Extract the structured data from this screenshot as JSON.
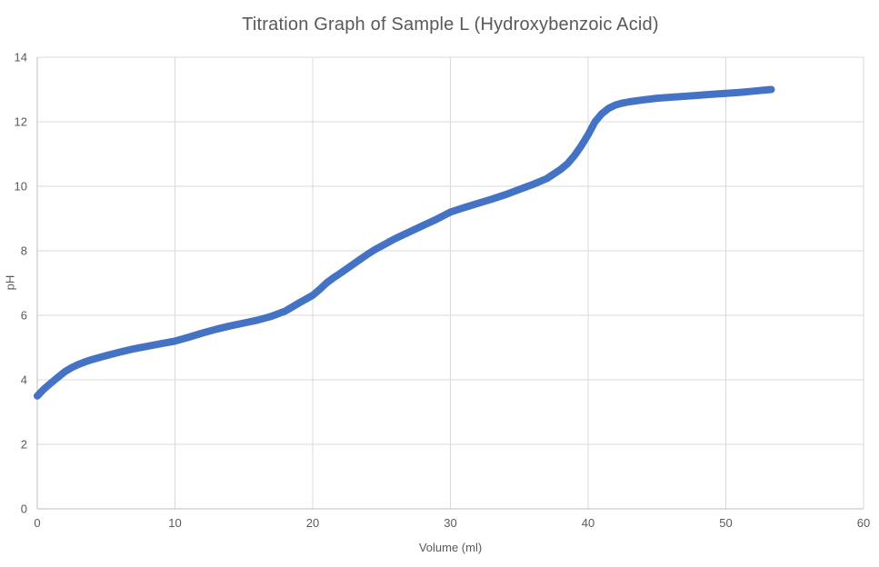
{
  "chart_data": {
    "type": "line",
    "title": "Titration Graph of Sample L (Hydroxybenzoic Acid)",
    "xlabel": "Volume (ml)",
    "ylabel": "pH",
    "xlim": [
      0,
      60
    ],
    "ylim": [
      0,
      14
    ],
    "x_ticks": [
      0,
      10,
      20,
      30,
      40,
      50,
      60
    ],
    "y_ticks": [
      0,
      2,
      4,
      6,
      8,
      10,
      12,
      14
    ],
    "grid": true,
    "legend_position": "none",
    "colors": {
      "series": "#4472C4",
      "gridline": "#D9D9D9",
      "axis_line": "#BFBFBF",
      "text": "#595959",
      "background": "#FFFFFF"
    },
    "series": [
      {
        "name": "pH",
        "color": "#4472C4",
        "line_width": 8,
        "points": [
          [
            0,
            3.5
          ],
          [
            0.5,
            3.72
          ],
          [
            1,
            3.9
          ],
          [
            1.5,
            4.08
          ],
          [
            2,
            4.25
          ],
          [
            2.5,
            4.38
          ],
          [
            3,
            4.48
          ],
          [
            3.5,
            4.56
          ],
          [
            4,
            4.63
          ],
          [
            4.5,
            4.69
          ],
          [
            5,
            4.75
          ],
          [
            6,
            4.86
          ],
          [
            7,
            4.96
          ],
          [
            8,
            5.04
          ],
          [
            9,
            5.12
          ],
          [
            10,
            5.2
          ],
          [
            11,
            5.32
          ],
          [
            12,
            5.45
          ],
          [
            13,
            5.57
          ],
          [
            14,
            5.67
          ],
          [
            15,
            5.76
          ],
          [
            16,
            5.85
          ],
          [
            17,
            5.97
          ],
          [
            18,
            6.13
          ],
          [
            19,
            6.38
          ],
          [
            19.5,
            6.5
          ],
          [
            20,
            6.62
          ],
          [
            20.5,
            6.8
          ],
          [
            21,
            7.0
          ],
          [
            21.5,
            7.16
          ],
          [
            22,
            7.3
          ],
          [
            22.5,
            7.45
          ],
          [
            23,
            7.6
          ],
          [
            23.5,
            7.75
          ],
          [
            24,
            7.9
          ],
          [
            24.5,
            8.03
          ],
          [
            25,
            8.15
          ],
          [
            26,
            8.38
          ],
          [
            27,
            8.58
          ],
          [
            28,
            8.78
          ],
          [
            29,
            8.98
          ],
          [
            30,
            9.2
          ],
          [
            31,
            9.34
          ],
          [
            32,
            9.47
          ],
          [
            33,
            9.6
          ],
          [
            34,
            9.74
          ],
          [
            35,
            9.9
          ],
          [
            36,
            10.06
          ],
          [
            37,
            10.24
          ],
          [
            38,
            10.52
          ],
          [
            38.5,
            10.7
          ],
          [
            39,
            10.95
          ],
          [
            39.5,
            11.25
          ],
          [
            40,
            11.6
          ],
          [
            40.5,
            12.0
          ],
          [
            41,
            12.25
          ],
          [
            41.5,
            12.42
          ],
          [
            42,
            12.52
          ],
          [
            42.5,
            12.58
          ],
          [
            43,
            12.62
          ],
          [
            44,
            12.68
          ],
          [
            45,
            12.73
          ],
          [
            46,
            12.76
          ],
          [
            47,
            12.79
          ],
          [
            48,
            12.82
          ],
          [
            49,
            12.85
          ],
          [
            50,
            12.88
          ],
          [
            51,
            12.91
          ],
          [
            52,
            12.95
          ],
          [
            53,
            12.99
          ],
          [
            53.3,
            13.0
          ]
        ]
      }
    ]
  }
}
